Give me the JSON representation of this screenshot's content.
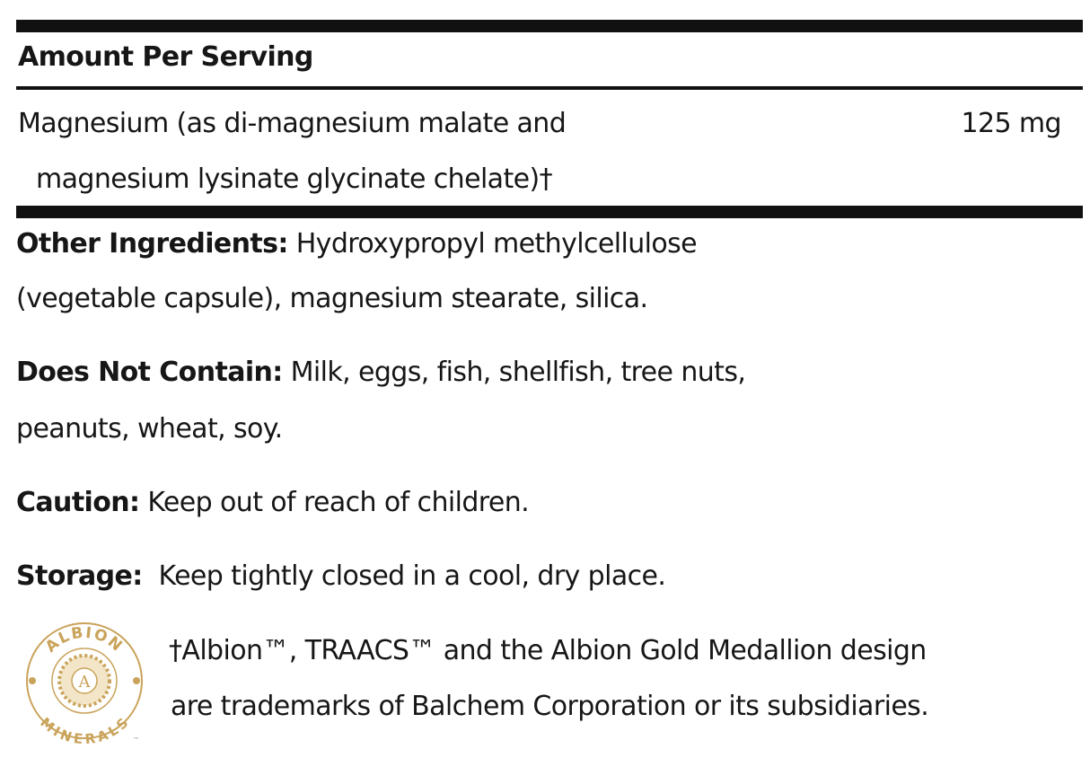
{
  "supplement_table": {
    "header": "Amount Per Serving",
    "rows": [
      {
        "ingredient_line1": "Magnesium (as di-magnesium malate and",
        "ingredient_line2": "magnesium lysinate glycinate chelate)†",
        "amount": "125 mg"
      }
    ]
  },
  "sections": [
    {
      "label": "Other Ingredients:",
      "line1": " Hydroxypropyl methylcellulose",
      "line2": "(vegetable capsule), magnesium stearate, silica."
    },
    {
      "label": "Does Not Contain:",
      "line1": " Milk, eggs, fish, shellfish, tree nuts,",
      "line2": "peanuts, wheat, soy."
    },
    {
      "label": "Caution:",
      "line1": " Keep out of reach of children."
    },
    {
      "label": "Storage:",
      "line1": "  Keep tightly closed in a cool, dry place."
    }
  ],
  "footnote": {
    "line1": "†Albion™, TRAACS™ and the Albion Gold Medallion design",
    "line2": "are trademarks of Balchem Corporation or its subsidiaries."
  },
  "logo": {
    "top_text": "ALBION",
    "bottom_text": "MINERALS",
    "center_letter": "A",
    "mark": "™",
    "color": "#c9a35a"
  }
}
